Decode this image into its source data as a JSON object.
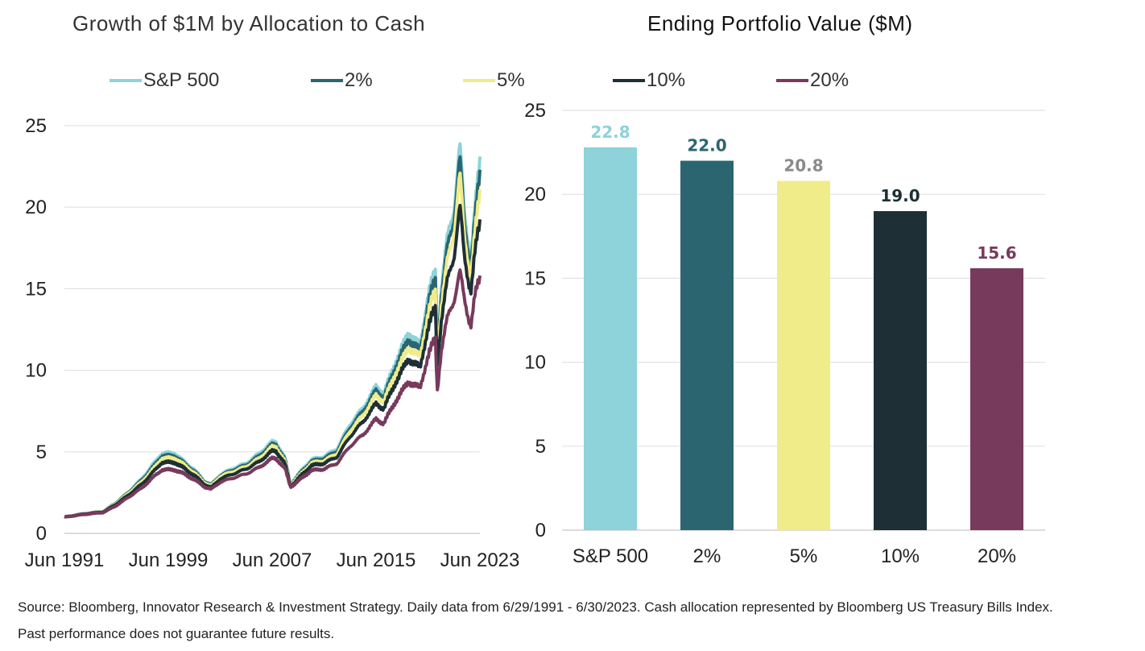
{
  "titles": {
    "left": "Growth of $1M by Allocation to Cash",
    "right": "Ending Portfolio Value ($M)"
  },
  "legend": [
    {
      "label": "S&P 500",
      "color": "#8dd3d9"
    },
    {
      "label": "2%",
      "color": "#2b6670"
    },
    {
      "label": "5%",
      "color": "#f0ec8a"
    },
    {
      "label": "10%",
      "color": "#1e2f36"
    },
    {
      "label": "20%",
      "color": "#773a5c"
    }
  ],
  "footnote": {
    "line1": "Source: Bloomberg, Innovator Research & Investment Strategy. Daily data from 6/29/1991 - 6/30/2023. Cash allocation represented by Bloomberg US Treasury Bills Index.",
    "line2": "Past performance does not guarantee future results."
  },
  "chart_data": [
    {
      "type": "line",
      "title": "Growth of $1M by Allocation to Cash",
      "ylim": [
        0,
        25
      ],
      "yticks": [
        0,
        5,
        10,
        15,
        20,
        25
      ],
      "xlim": [
        1991.5,
        2023.5
      ],
      "xticks": [
        {
          "value": 1991.5,
          "label": "Jun 1991"
        },
        {
          "value": 1999.5,
          "label": "Jun 1999"
        },
        {
          "value": 2007.5,
          "label": "Jun 2007"
        },
        {
          "value": 2015.5,
          "label": "Jun 2015"
        },
        {
          "value": 2023.5,
          "label": "Jun 2023"
        }
      ],
      "grid": "horizontal",
      "x": [
        1991.5,
        1993,
        1994.5,
        1995.5,
        1996.5,
        1997.5,
        1998.5,
        1999,
        2000,
        2000.7,
        2001.5,
        2002.3,
        2002.8,
        2003.5,
        2004.5,
        2005.5,
        2006.5,
        2007.5,
        2007.8,
        2008.5,
        2008.9,
        2009.2,
        2009.8,
        2010.5,
        2011.5,
        2012.5,
        2013.5,
        2014.5,
        2015.5,
        2016.1,
        2017,
        2018,
        2018.9,
        2019.5,
        2020.1,
        2020.2,
        2020.5,
        2021,
        2021.5,
        2021.95,
        2022.3,
        2022.8,
        2023.1,
        2023.5
      ],
      "series": [
        {
          "name": "S&P 500",
          "color": "#8dd3d9",
          "values": [
            1.0,
            1.2,
            1.35,
            1.9,
            2.6,
            3.4,
            4.4,
            4.9,
            4.9,
            4.4,
            3.9,
            3.2,
            3.0,
            3.6,
            4.0,
            4.3,
            4.9,
            5.6,
            5.6,
            4.6,
            3.0,
            3.3,
            3.9,
            4.5,
            4.7,
            5.2,
            6.7,
            7.7,
            9.0,
            8.6,
            10.5,
            12.3,
            11.5,
            14.6,
            16.0,
            11.4,
            15.0,
            18.0,
            20.0,
            23.8,
            19.5,
            17.0,
            19.6,
            22.8
          ]
        },
        {
          "name": "2%",
          "color": "#2b6670",
          "values": [
            1.0,
            1.2,
            1.34,
            1.88,
            2.55,
            3.3,
            4.25,
            4.75,
            4.75,
            4.3,
            3.8,
            3.15,
            2.95,
            3.55,
            3.9,
            4.2,
            4.75,
            5.45,
            5.45,
            4.5,
            3.0,
            3.25,
            3.8,
            4.4,
            4.6,
            5.05,
            6.5,
            7.5,
            8.75,
            8.35,
            10.2,
            11.9,
            11.2,
            14.1,
            15.5,
            11.1,
            14.5,
            17.4,
            19.4,
            23.0,
            18.9,
            16.5,
            19.0,
            22.0
          ]
        },
        {
          "name": "5%",
          "color": "#f0ec8a",
          "values": [
            1.0,
            1.19,
            1.33,
            1.85,
            2.5,
            3.2,
            4.1,
            4.6,
            4.6,
            4.2,
            3.7,
            3.1,
            2.9,
            3.5,
            3.8,
            4.1,
            4.6,
            5.3,
            5.3,
            4.4,
            2.95,
            3.2,
            3.7,
            4.3,
            4.45,
            4.9,
            6.3,
            7.25,
            8.45,
            8.1,
            9.8,
            11.4,
            10.8,
            13.5,
            14.8,
            10.7,
            13.9,
            16.6,
            18.5,
            22.0,
            18.1,
            15.9,
            18.2,
            20.8
          ]
        },
        {
          "name": "10%",
          "color": "#1e2f36",
          "values": [
            1.0,
            1.18,
            1.31,
            1.8,
            2.4,
            3.05,
            3.9,
            4.35,
            4.35,
            4.0,
            3.55,
            3.0,
            2.8,
            3.35,
            3.65,
            3.95,
            4.4,
            5.05,
            5.05,
            4.25,
            2.9,
            3.1,
            3.6,
            4.15,
            4.3,
            4.7,
            5.95,
            6.85,
            7.95,
            7.65,
            9.25,
            10.7,
            10.15,
            12.6,
            13.8,
            10.1,
            13.0,
            15.4,
            17.1,
            20.0,
            16.9,
            14.9,
            17.0,
            19.0
          ]
        },
        {
          "name": "20%",
          "color": "#773a5c",
          "values": [
            1.0,
            1.16,
            1.28,
            1.7,
            2.25,
            2.8,
            3.55,
            3.9,
            3.9,
            3.65,
            3.3,
            2.85,
            2.7,
            3.15,
            3.4,
            3.65,
            4.05,
            4.6,
            4.6,
            3.95,
            2.85,
            3.0,
            3.4,
            3.85,
            3.95,
            4.3,
            5.35,
            6.05,
            7.0,
            6.75,
            8.1,
            9.3,
            8.9,
            10.9,
            11.9,
            8.6,
            11.2,
            13.1,
            14.4,
            16.0,
            14.3,
            12.8,
            14.4,
            15.6
          ]
        }
      ]
    },
    {
      "type": "bar",
      "title": "Ending Portfolio Value ($M)",
      "categories": [
        "S&P 500",
        "2%",
        "5%",
        "10%",
        "20%"
      ],
      "values": [
        22.8,
        22.0,
        20.8,
        19.0,
        15.6
      ],
      "value_labels": [
        "22.8",
        "22.0",
        "20.8",
        "19.0",
        "15.6"
      ],
      "colors": [
        "#8dd3d9",
        "#2b6670",
        "#f0ec8a",
        "#1e2f36",
        "#773a5c"
      ],
      "label_colors": [
        "#8dd3d9",
        "#2b6670",
        "#8a8a8a",
        "#1e2f36",
        "#773a5c"
      ],
      "ylim": [
        0,
        25
      ],
      "yticks": [
        0,
        5,
        10,
        15,
        20,
        25
      ],
      "grid": "horizontal"
    }
  ]
}
